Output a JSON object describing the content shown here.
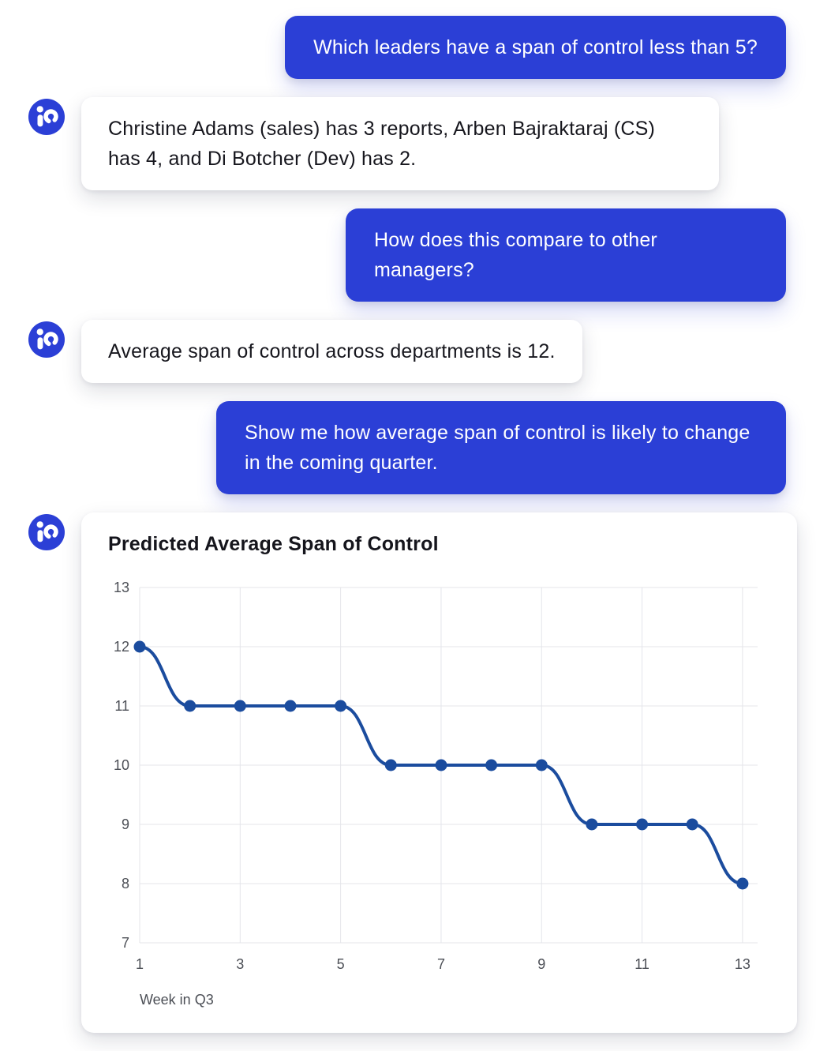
{
  "colors": {
    "user_bubble": "#2B3FD6",
    "avatar": "#2B3FD6",
    "bot_card": "#FFFFFF",
    "chart_line": "#1B4C9E",
    "text_dark": "#17171E",
    "text_light": "#FFFFFF",
    "axis_text": "#4C4F56",
    "grid": "#E4E5EA"
  },
  "conversation": [
    {
      "role": "user",
      "text": "Which leaders have a span of control less than 5?"
    },
    {
      "role": "bot",
      "text": "Christine Adams (sales) has 3 reports, Arben Bajraktaraj (CS) has 4, and Di Botcher (Dev) has 2."
    },
    {
      "role": "user",
      "text": "How does this compare to other managers?"
    },
    {
      "role": "bot",
      "text": "Average span of control across departments is 12."
    },
    {
      "role": "user",
      "text": "Show me how average span of control is likely to change in the coming quarter."
    }
  ],
  "chart_data": {
    "type": "line",
    "title": "Predicted Average Span of Control",
    "xlabel": "Week in Q3",
    "ylabel": "",
    "x": [
      1,
      2,
      3,
      4,
      5,
      6,
      7,
      8,
      9,
      10,
      11,
      12,
      13
    ],
    "values": [
      12,
      11,
      11,
      11,
      11,
      10,
      10,
      10,
      10,
      9,
      9,
      9,
      8
    ],
    "xlim": [
      1,
      13.3
    ],
    "ylim": [
      7,
      13
    ],
    "xticks": [
      1,
      3,
      5,
      7,
      9,
      11,
      13
    ],
    "yticks": [
      7,
      8,
      9,
      10,
      11,
      12,
      13
    ],
    "grid": true,
    "legend": "none"
  }
}
